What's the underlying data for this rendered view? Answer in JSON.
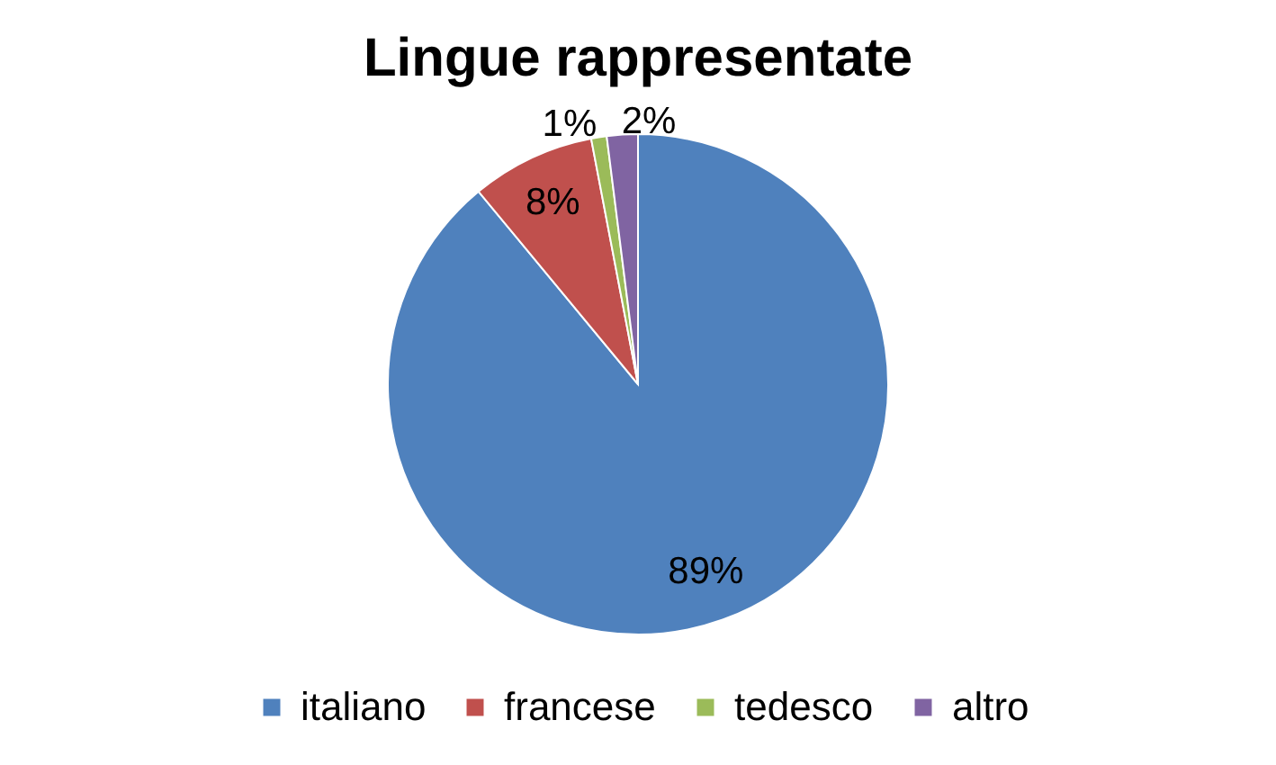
{
  "chart_data": {
    "type": "pie",
    "title": "Lingue rappresentate",
    "categories": [
      "italiano",
      "francese",
      "tedesco",
      "altro"
    ],
    "values": [
      89,
      8,
      1,
      2
    ],
    "colors": [
      "#4f81bd",
      "#c0504d",
      "#9bbb59",
      "#8064a2"
    ],
    "value_labels": [
      "89%",
      "8%",
      "1%",
      "2%"
    ],
    "legend": "bottom"
  }
}
